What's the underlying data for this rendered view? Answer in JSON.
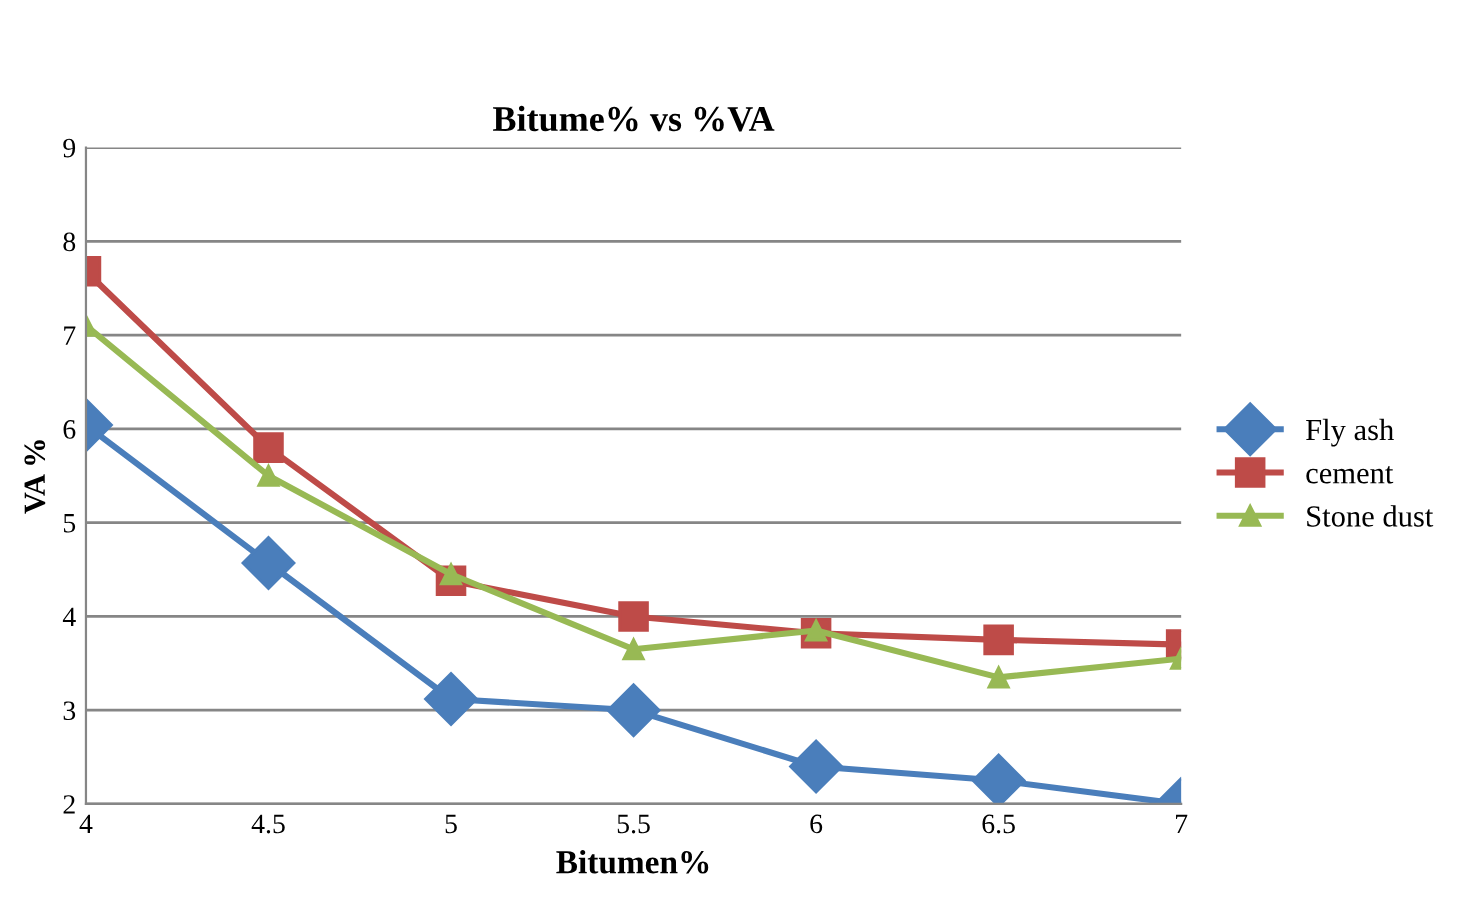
{
  "chart_data": {
    "type": "line",
    "title": "Bitume% vs %VA",
    "xlabel": "Bitumen%",
    "ylabel": "VA %",
    "x": [
      4,
      4.5,
      5,
      5.5,
      6,
      6.5,
      7
    ],
    "series": [
      {
        "name": "Fly ash",
        "color": "#4a7ebb",
        "marker": "diamond",
        "values": [
          6.04,
          4.57,
          3.12,
          3.0,
          2.4,
          2.25,
          2.0
        ]
      },
      {
        "name": "cement",
        "color": "#be4b48",
        "marker": "square",
        "values": [
          7.68,
          5.8,
          4.38,
          4.0,
          3.82,
          3.75,
          3.7
        ]
      },
      {
        "name": "Stone dust",
        "color": "#98b954",
        "marker": "triangle",
        "values": [
          7.1,
          5.5,
          4.45,
          3.65,
          3.85,
          3.35,
          3.55
        ]
      }
    ],
    "xlim": [
      4,
      7
    ],
    "xticks": [
      4,
      4.5,
      5,
      5.5,
      6,
      6.5,
      7
    ],
    "ylim": [
      2,
      9
    ],
    "yticks": [
      2,
      3,
      4,
      5,
      6,
      7,
      8,
      9
    ],
    "grid": "y",
    "legend": "right"
  }
}
